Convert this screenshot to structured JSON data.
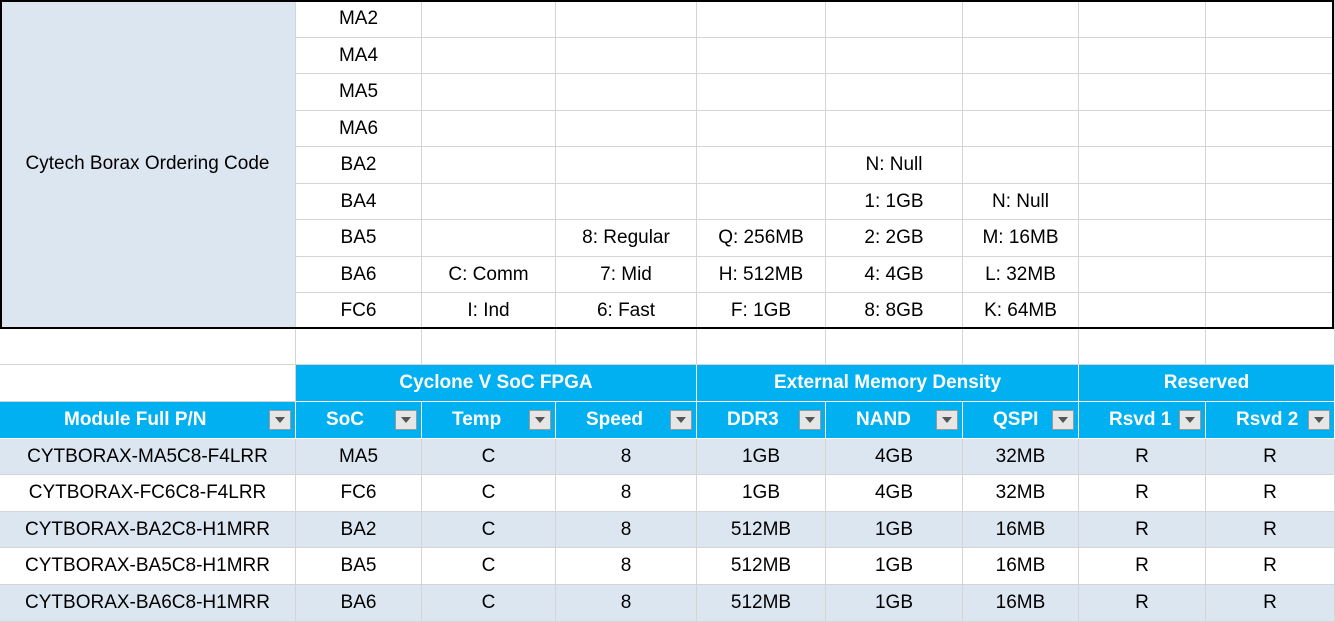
{
  "ordering": {
    "label": "Cytech Borax Ordering Code",
    "rows": [
      [
        "MA2",
        null,
        null,
        null,
        null,
        null
      ],
      [
        "MA4",
        null,
        null,
        null,
        null,
        null
      ],
      [
        "MA5",
        null,
        null,
        null,
        null,
        null
      ],
      [
        "MA6",
        null,
        null,
        null,
        null,
        null
      ],
      [
        "BA2",
        null,
        null,
        null,
        "N: Null",
        null
      ],
      [
        "BA4",
        null,
        null,
        null,
        "1: 1GB",
        "N: Null"
      ],
      [
        "BA5",
        null,
        "8: Regular",
        "Q: 256MB",
        "2: 2GB",
        "M: 16MB"
      ],
      [
        "BA6",
        "C: Comm",
        "7: Mid",
        "H: 512MB",
        "4: 4GB",
        "L: 32MB"
      ],
      [
        "FC6",
        "I: Ind",
        "6: Fast",
        "F: 1GB",
        "8: 8GB",
        "K: 64MB"
      ]
    ]
  },
  "table": {
    "groups": [
      "Cyclone V SoC FPGA",
      "External Memory Density",
      "Reserved"
    ],
    "headers": [
      "Module Full P/N",
      "SoC",
      "Temp",
      "Speed",
      "DDR3",
      "NAND",
      "QSPI",
      "Rsvd 1",
      "Rsvd 2"
    ],
    "rows": [
      [
        "CYTBORAX-MA5C8-F4LRR",
        "MA5",
        "C",
        "8",
        "1GB",
        "4GB",
        "32MB",
        "R",
        "R"
      ],
      [
        "CYTBORAX-FC6C8-F4LRR",
        "FC6",
        "C",
        "8",
        "1GB",
        "4GB",
        "32MB",
        "R",
        "R"
      ],
      [
        "CYTBORAX-BA2C8-H1MRR",
        "BA2",
        "C",
        "8",
        "512MB",
        "1GB",
        "16MB",
        "R",
        "R"
      ],
      [
        "CYTBORAX-BA5C8-H1MRR",
        "BA5",
        "C",
        "8",
        "512MB",
        "1GB",
        "16MB",
        "R",
        "R"
      ],
      [
        "CYTBORAX-BA6C8-H1MRR",
        "BA6",
        "C",
        "8",
        "512MB",
        "1GB",
        "16MB",
        "R",
        "R"
      ]
    ]
  }
}
